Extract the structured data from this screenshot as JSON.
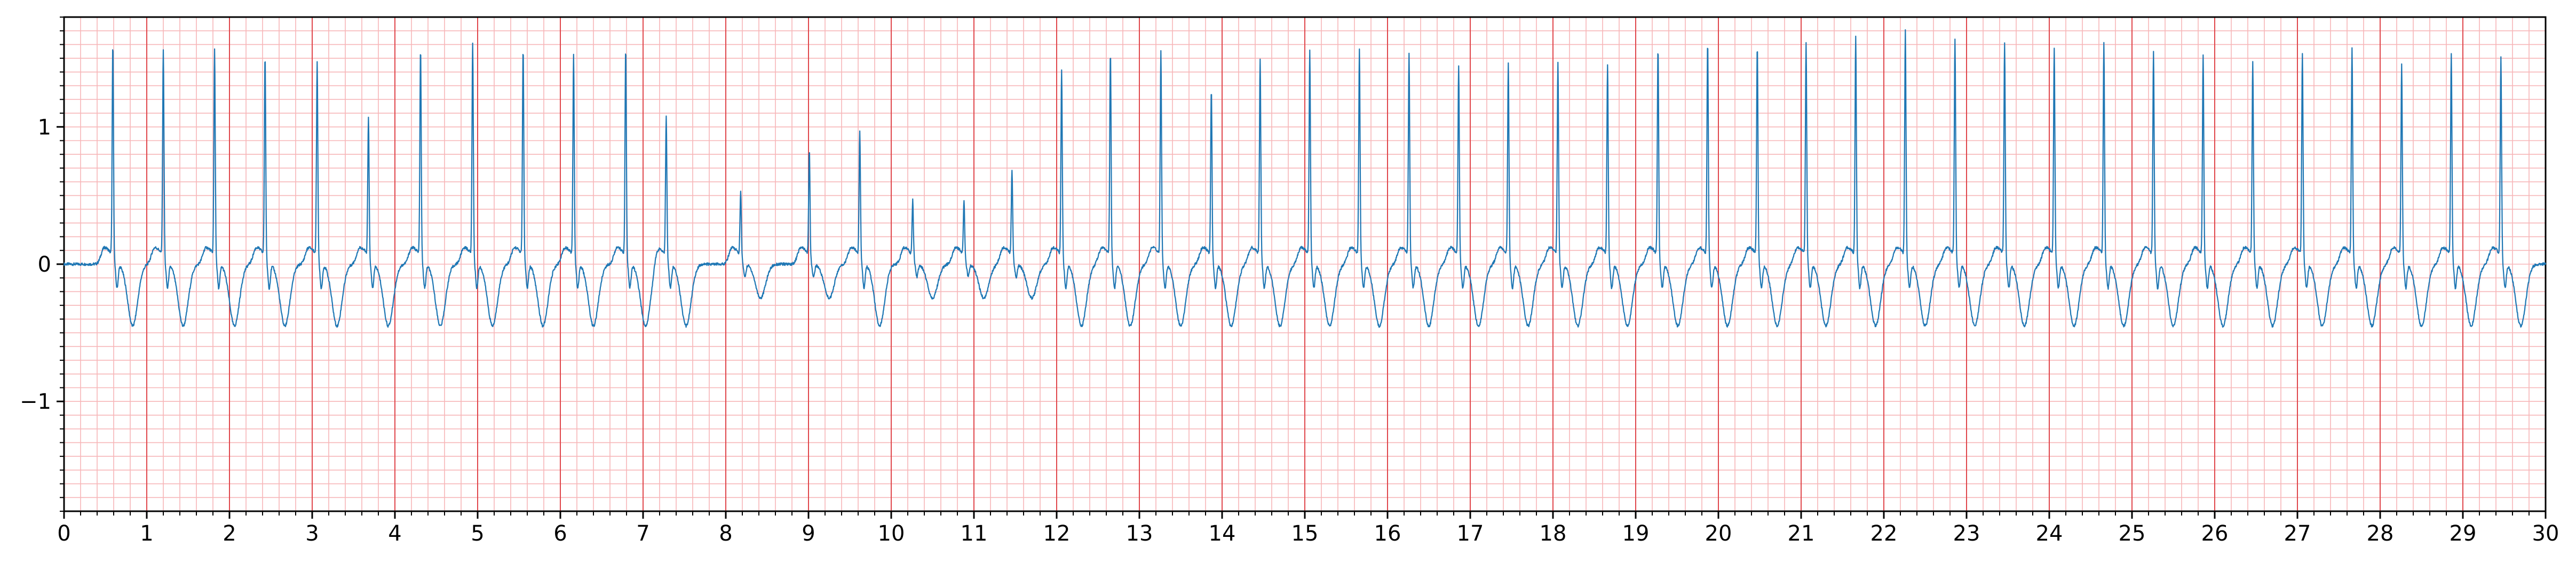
{
  "chart_data": {
    "type": "line",
    "title": "",
    "xlabel": "",
    "ylabel": "",
    "xlim": [
      0,
      30
    ],
    "ylim": [
      -1.8,
      1.8
    ],
    "grid": {
      "major_step_x": 1,
      "minor_step_x": 0.2,
      "major_step_y": 0.5,
      "minor_step_y": 0.1
    },
    "x_ticks": [
      0,
      1,
      2,
      3,
      4,
      5,
      6,
      7,
      8,
      9,
      10,
      11,
      12,
      13,
      14,
      15,
      16,
      17,
      18,
      19,
      20,
      21,
      22,
      23,
      24,
      25,
      26,
      27,
      28,
      29,
      30
    ],
    "x_tick_labels": [
      "0",
      "1",
      "2",
      "3",
      "4",
      "5",
      "6",
      "7",
      "8",
      "9",
      "10",
      "11",
      "12",
      "13",
      "14",
      "15",
      "16",
      "17",
      "18",
      "19",
      "20",
      "21",
      "22",
      "23",
      "24",
      "25",
      "26",
      "27",
      "28",
      "29",
      "30"
    ],
    "y_ticks": [
      1,
      0,
      -1
    ],
    "y_tick_labels": [
      "1",
      "0",
      "−1"
    ],
    "colors": {
      "line": "#1f77b4",
      "major_grid": "#e0474c",
      "minor_grid": "#f7b6b8",
      "axes": "#000000"
    },
    "series": [
      {
        "values_note": "",
        "beats": [
          [
            0.61,
            1.55
          ],
          [
            1.22,
            1.52
          ],
          [
            1.84,
            1.52
          ],
          [
            2.45,
            1.47
          ],
          [
            3.08,
            1.43
          ],
          [
            3.7,
            1.02
          ],
          [
            4.33,
            1.52
          ],
          [
            4.96,
            1.57
          ],
          [
            5.57,
            1.52
          ],
          [
            6.18,
            1.48
          ],
          [
            6.81,
            1.52
          ],
          [
            7.3,
            1.03
          ],
          [
            8.2,
            0.48
          ],
          [
            9.03,
            0.78
          ],
          [
            9.64,
            0.93
          ],
          [
            10.28,
            0.42
          ],
          [
            10.9,
            0.42
          ],
          [
            11.48,
            0.64
          ],
          [
            12.08,
            1.37
          ],
          [
            12.67,
            1.5
          ],
          [
            13.28,
            1.5
          ],
          [
            13.89,
            1.22
          ],
          [
            14.48,
            1.45
          ],
          [
            15.08,
            1.52
          ],
          [
            15.68,
            1.52
          ],
          [
            16.28,
            1.48
          ],
          [
            16.88,
            1.4
          ],
          [
            17.48,
            1.41
          ],
          [
            18.08,
            1.42
          ],
          [
            18.68,
            1.41
          ],
          [
            19.29,
            1.52
          ],
          [
            19.89,
            1.57
          ],
          [
            20.49,
            1.55
          ],
          [
            21.08,
            1.57
          ],
          [
            21.68,
            1.62
          ],
          [
            22.28,
            1.65
          ],
          [
            22.88,
            1.6
          ],
          [
            23.48,
            1.57
          ],
          [
            24.08,
            1.52
          ],
          [
            24.68,
            1.57
          ],
          [
            25.28,
            1.5
          ],
          [
            25.88,
            1.47
          ],
          [
            26.48,
            1.43
          ],
          [
            27.08,
            1.49
          ],
          [
            27.68,
            1.53
          ],
          [
            28.28,
            1.41
          ],
          [
            28.88,
            1.49
          ],
          [
            29.48,
            1.46
          ]
        ],
        "name": ""
      }
    ]
  }
}
